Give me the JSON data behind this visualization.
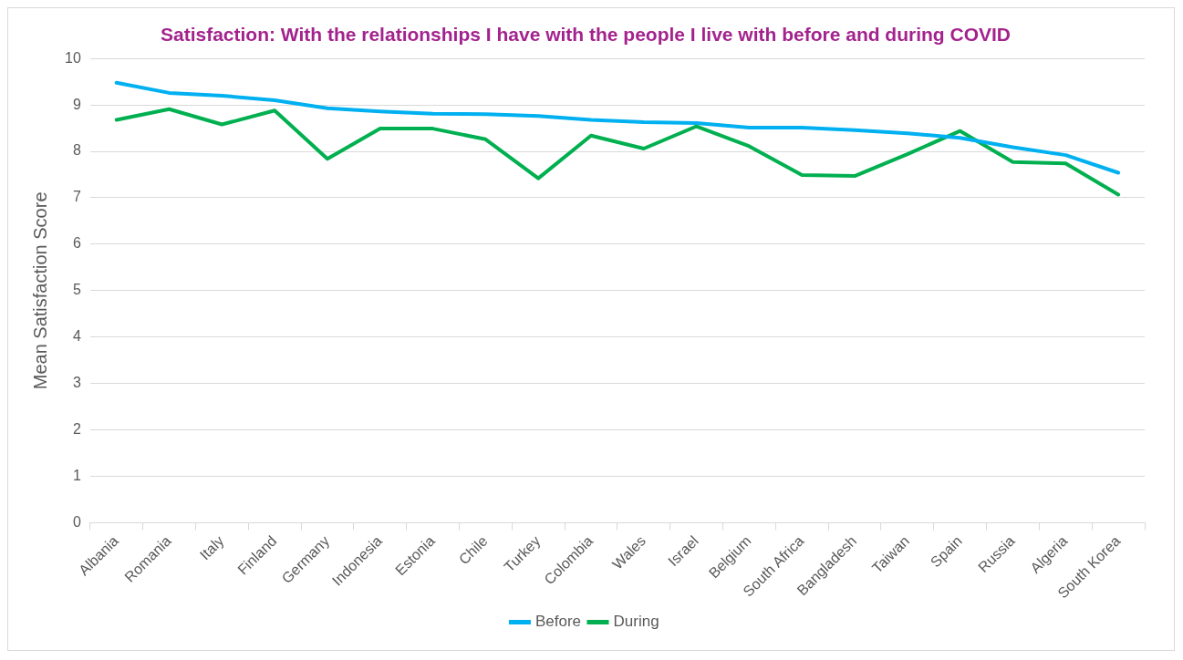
{
  "chart_data": {
    "type": "line",
    "title": "Satisfaction: With the relationships I have with the people I live with before and during COVID",
    "ylabel": "Mean Satisfaction Score",
    "categories": [
      "Albania",
      "Romania",
      "Italy",
      "Finland",
      "Germany",
      "Indonesia",
      "Estonia",
      "Chile",
      "Turkey",
      "Colombia",
      "Wales",
      "Israel",
      "Belgium",
      "South Africa",
      "Bangladesh",
      "Taiwan",
      "Spain",
      "Russia",
      "Algeria",
      "South Korea"
    ],
    "series": [
      {
        "name": "Before",
        "color": "#00b0f0",
        "values": [
          9.48,
          9.26,
          9.2,
          9.1,
          8.93,
          8.86,
          8.81,
          8.8,
          8.76,
          8.68,
          8.63,
          8.61,
          8.51,
          8.51,
          8.46,
          8.39,
          8.29,
          8.09,
          7.92,
          7.54
        ]
      },
      {
        "name": "During",
        "color": "#00b050",
        "values": [
          8.68,
          8.91,
          8.58,
          8.88,
          7.84,
          8.49,
          8.49,
          8.26,
          7.42,
          8.34,
          8.06,
          8.54,
          8.11,
          7.49,
          7.47,
          7.94,
          8.44,
          7.77,
          7.74,
          7.07
        ]
      }
    ],
    "ylim": [
      0,
      10
    ],
    "yticks": [
      0,
      1,
      2,
      3,
      4,
      5,
      6,
      7,
      8,
      9,
      10
    ],
    "grid": "y",
    "legend": "bottom",
    "marker": "none",
    "line_style": "solid"
  }
}
